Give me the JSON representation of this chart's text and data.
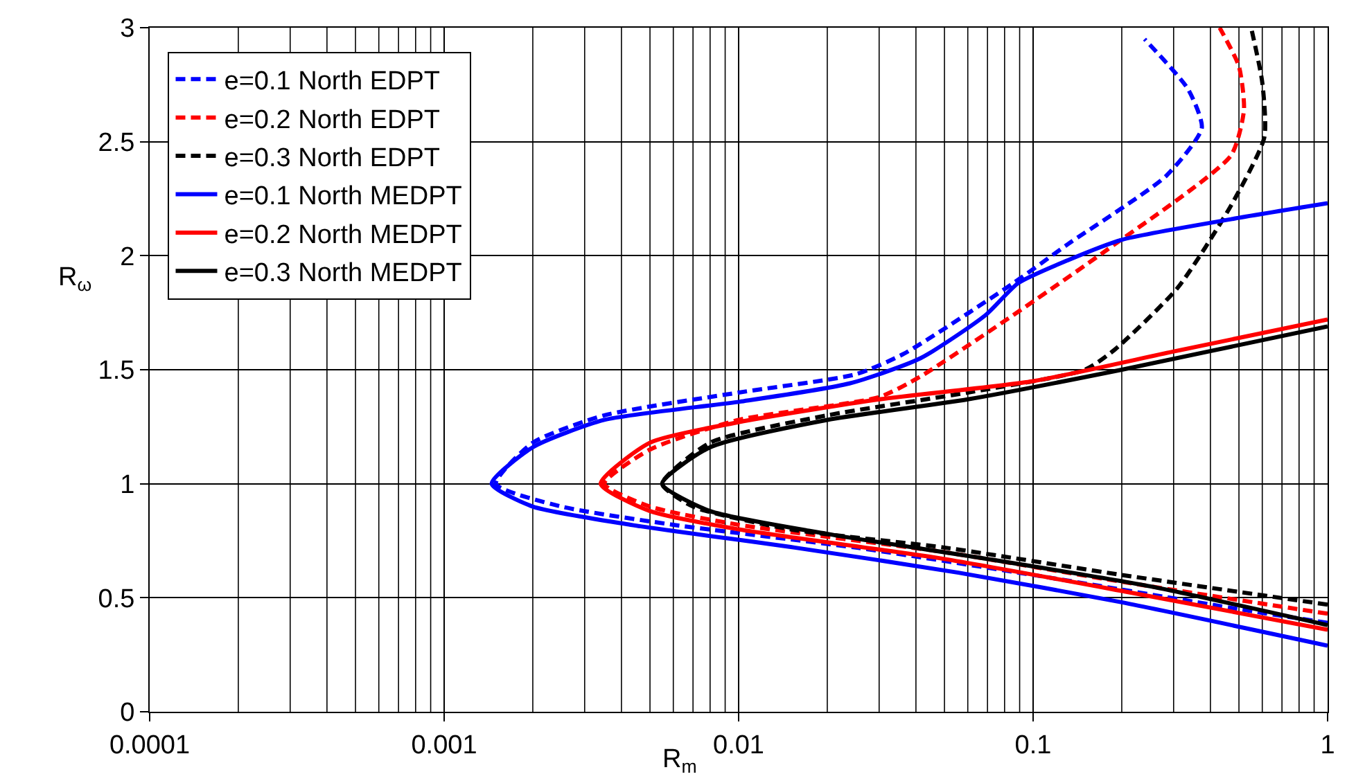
{
  "chart_data": {
    "type": "line",
    "xlabel": "R$_{m}$",
    "ylabel": "R$_{ω}$",
    "log": "x",
    "xlim": [
      0.0001,
      1
    ],
    "xticks": [
      0.0001,
      0.001,
      0.01,
      0.1,
      1
    ],
    "ylim": [
      0,
      3
    ],
    "yticks": [
      0,
      0.5,
      1,
      1.5,
      2,
      2.5,
      3
    ],
    "grid": true,
    "legend": "top left",
    "marker": "none",
    "series": [
      {
        "name": "e=0.1 North EDPT",
        "color": "#0000ff",
        "line_style": "dashed",
        "x": [
          1,
          0.5,
          0.1,
          0.025,
          0.006,
          0.0025,
          0.0015,
          0.002,
          0.0035,
          0.01,
          0.025,
          0.0364,
          0.0857,
          0.131,
          0.283,
          0.374,
          0.336,
          0.239
        ],
        "values": [
          0.39,
          0.45,
          0.6,
          0.72,
          0.82,
          0.9,
          1.0,
          1.18,
          1.3,
          1.4,
          1.48,
          1.57,
          1.88,
          2.05,
          2.35,
          2.56,
          2.73,
          2.95
        ]
      },
      {
        "name": "e=0.2 North EDPT",
        "color": "#ff0000",
        "line_style": "dashed",
        "x": [
          1,
          0.2,
          0.05,
          0.01,
          0.005,
          0.0035,
          0.005,
          0.01,
          0.03,
          0.0414,
          0.0857,
          0.18,
          0.47,
          0.52,
          0.5,
          0.43
        ],
        "values": [
          0.43,
          0.57,
          0.7,
          0.82,
          0.9,
          1.0,
          1.15,
          1.28,
          1.38,
          1.47,
          1.74,
          2.03,
          2.44,
          2.64,
          2.83,
          3.0
        ]
      },
      {
        "name": "e=0.3 North EDPT",
        "color": "#000000",
        "line_style": "dashed",
        "x": [
          1,
          0.2,
          0.05,
          0.015,
          0.007,
          0.0055,
          0.008,
          0.02,
          0.06,
          0.15,
          0.19,
          0.31,
          0.47,
          0.61,
          0.6,
          0.55
        ],
        "values": [
          0.47,
          0.6,
          0.72,
          0.8,
          0.9,
          1.0,
          1.18,
          1.3,
          1.4,
          1.5,
          1.59,
          1.86,
          2.22,
          2.52,
          2.76,
          3.0
        ]
      },
      {
        "name": "e=0.1 North MEDPT",
        "color": "#0000ff",
        "line_style": "solid",
        "x": [
          1,
          0.2,
          0.0558,
          0.0155,
          0.0043,
          0.002,
          0.00145,
          0.002,
          0.0035,
          0.0101,
          0.0238,
          0.0414,
          0.069,
          0.089,
          0.131,
          0.2,
          0.47,
          1
        ],
        "values": [
          0.29,
          0.48,
          0.61,
          0.72,
          0.82,
          0.9,
          1.0,
          1.16,
          1.28,
          1.36,
          1.44,
          1.55,
          1.74,
          1.88,
          1.98,
          2.07,
          2.16,
          2.23
        ]
      },
      {
        "name": "e=0.2 North MEDPT",
        "color": "#ff0000",
        "line_style": "solid",
        "x": [
          1,
          0.2,
          0.05,
          0.01,
          0.005,
          0.0034,
          0.005,
          0.01,
          0.03,
          0.1,
          0.3,
          1
        ],
        "values": [
          0.36,
          0.53,
          0.67,
          0.8,
          0.88,
          1.0,
          1.18,
          1.27,
          1.37,
          1.45,
          1.58,
          1.72
        ]
      },
      {
        "name": "e=0.3 North MEDPT",
        "color": "#000000",
        "line_style": "solid",
        "x": [
          1,
          0.25,
          0.07,
          0.02,
          0.008,
          0.0055,
          0.008,
          0.02,
          0.06,
          0.2,
          1
        ],
        "values": [
          0.38,
          0.55,
          0.67,
          0.78,
          0.88,
          1.0,
          1.16,
          1.28,
          1.37,
          1.5,
          1.69
        ]
      }
    ]
  }
}
